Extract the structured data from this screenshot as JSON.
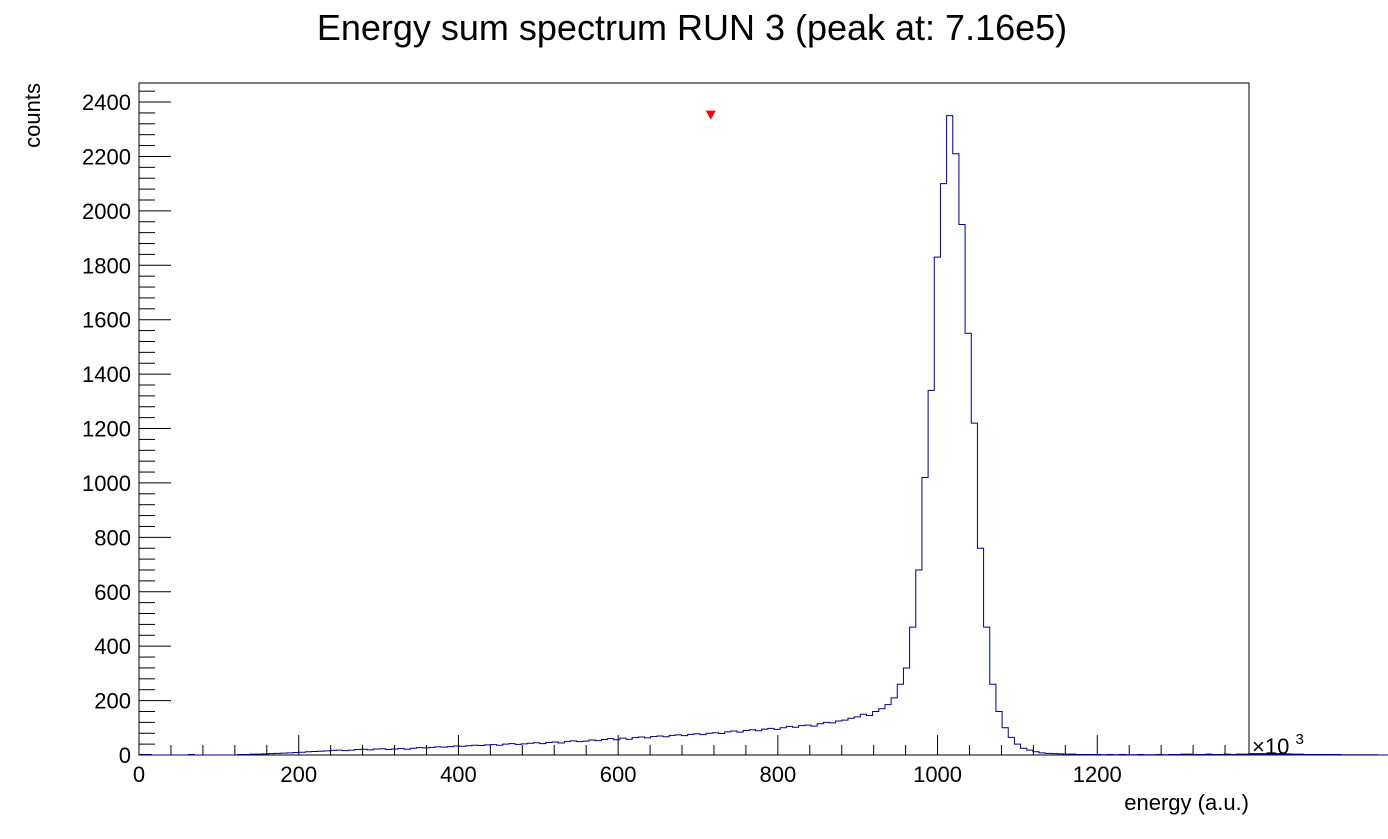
{
  "chart_data": {
    "type": "histogram",
    "title": "Energy sum spectrum RUN 3 (peak at: 7.16e5)",
    "xlabel": "energy (a.u.)",
    "ylabel": "counts",
    "x_multiplier_label": "×10",
    "x_multiplier_exponent": "3",
    "xlim": [
      0,
      1390
    ],
    "ylim": [
      0,
      2470
    ],
    "x_ticks": [
      0,
      200,
      400,
      600,
      800,
      1000,
      1200
    ],
    "x_tick_labels": [
      "0",
      "200",
      "400",
      "600",
      "800",
      "1000",
      "1200"
    ],
    "y_ticks": [
      0,
      200,
      400,
      600,
      800,
      1000,
      1200,
      1400,
      1600,
      1800,
      2000,
      2200,
      2400
    ],
    "y_tick_labels": [
      "0",
      "200",
      "400",
      "600",
      "800",
      "1000",
      "1200",
      "1400",
      "1600",
      "1800",
      "2000",
      "2200",
      "2400"
    ],
    "line_color": "#000080",
    "marker_color": "#ff0000",
    "peak": {
      "x": 716,
      "y": 2350
    },
    "bin_width": 7.72,
    "values": [
      2,
      2,
      0,
      0,
      0,
      0,
      0,
      0,
      2,
      0,
      0,
      0,
      0,
      0,
      0,
      0,
      2,
      2,
      3,
      3,
      4,
      5,
      6,
      7,
      8,
      9,
      10,
      12,
      13,
      14,
      15,
      17,
      18,
      16,
      18,
      20,
      21,
      19,
      22,
      23,
      20,
      22,
      24,
      21,
      25,
      27,
      26,
      28,
      30,
      29,
      31,
      33,
      32,
      34,
      36,
      35,
      37,
      38,
      36,
      40,
      42,
      39,
      41,
      43,
      45,
      42,
      46,
      48,
      44,
      50,
      52,
      49,
      51,
      55,
      53,
      57,
      60,
      56,
      62,
      58,
      64,
      66,
      63,
      68,
      70,
      67,
      72,
      74,
      71,
      76,
      78,
      75,
      80,
      82,
      79,
      85,
      88,
      84,
      90,
      93,
      89,
      95,
      98,
      94,
      100,
      105,
      102,
      108,
      110,
      106,
      115,
      120,
      118,
      125,
      128,
      135,
      140,
      150,
      145,
      160,
      170,
      185,
      210,
      260,
      320,
      470,
      680,
      1020,
      1340,
      1830,
      2100,
      2350,
      2210,
      1950,
      1550,
      1220,
      760,
      470,
      260,
      160,
      100,
      65,
      40,
      25,
      18,
      12,
      8,
      6,
      5,
      4,
      3,
      3,
      2,
      2,
      2,
      2,
      1,
      2,
      1,
      2,
      1,
      1,
      2,
      1,
      1,
      2,
      1,
      2,
      2,
      3,
      3,
      2,
      2,
      3,
      2,
      2,
      3,
      2,
      3,
      3,
      2,
      3,
      4,
      3,
      4,
      5,
      5,
      4,
      3,
      3,
      2,
      2,
      2,
      1,
      1,
      2,
      1,
      1,
      0,
      1,
      0,
      1,
      0,
      0,
      0,
      0,
      0,
      0,
      0,
      0,
      0,
      0,
      0,
      0,
      0,
      0,
      0,
      0,
      0,
      0,
      0,
      0,
      0,
      0,
      0,
      0,
      0,
      0,
      0,
      0,
      0,
      0,
      0,
      0,
      0,
      0,
      0,
      0,
      0,
      0,
      0,
      0
    ]
  }
}
